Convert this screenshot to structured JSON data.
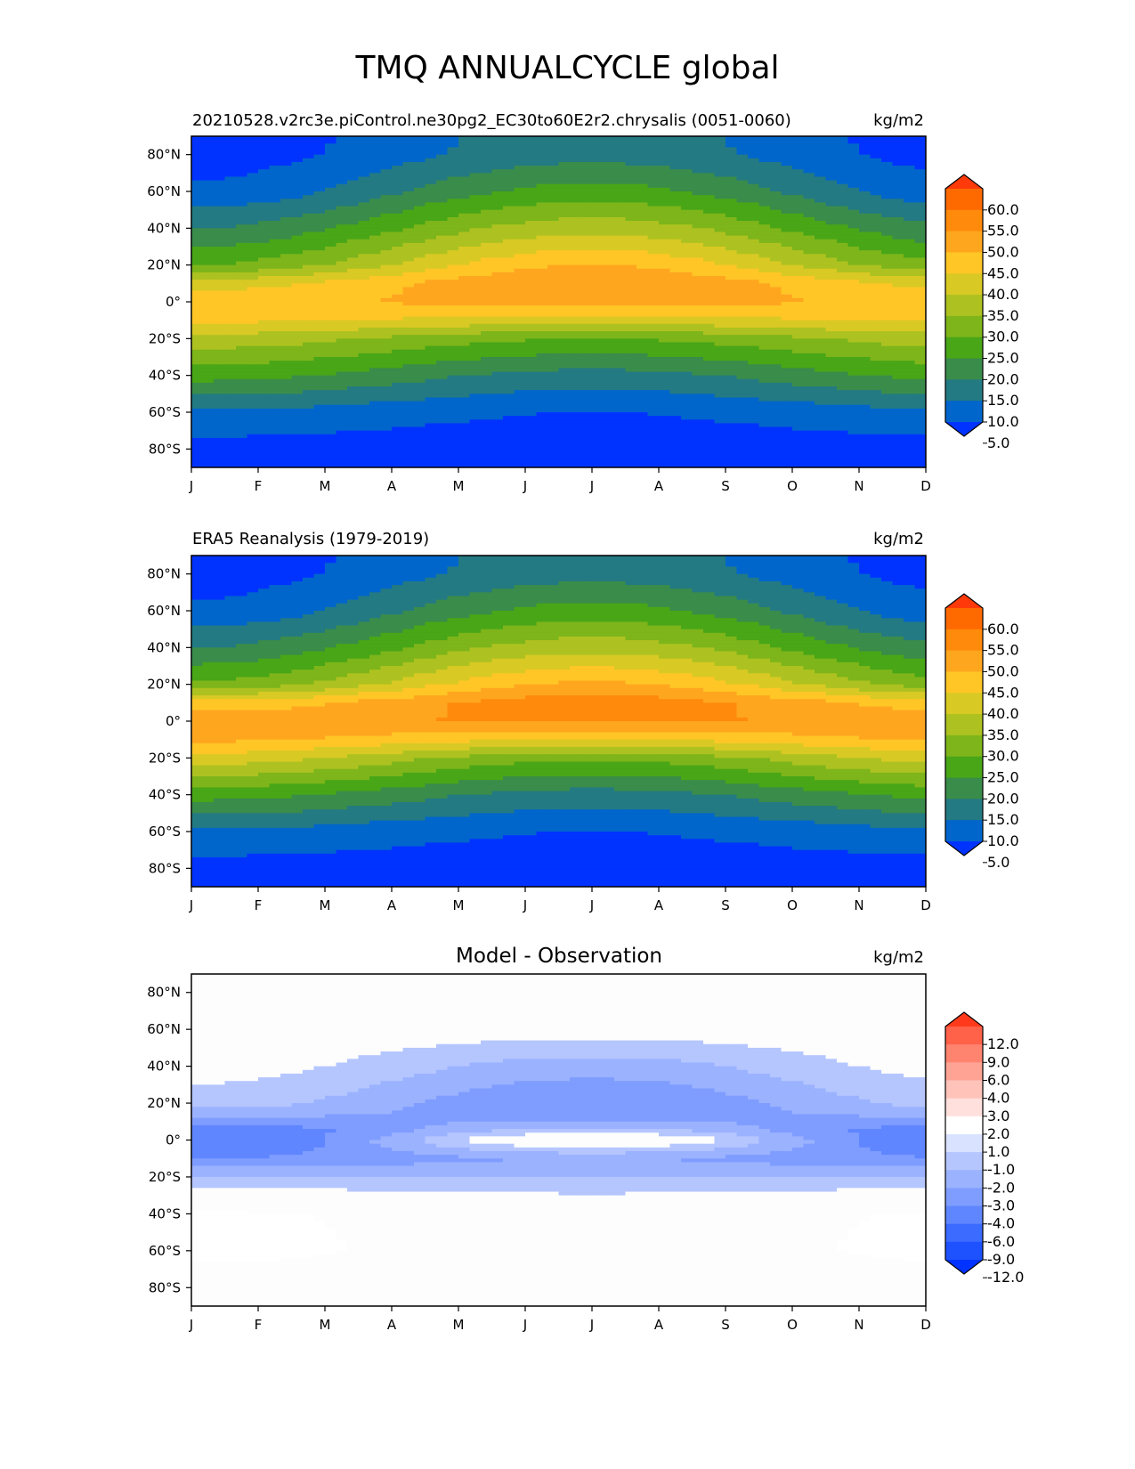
{
  "figure": {
    "title": "TMQ ANNUALCYCLE global"
  },
  "colors": {
    "field_levels": [
      "#0033ff",
      "#0066cc",
      "#237a83",
      "#3a8c4a",
      "#48a617",
      "#7db51a",
      "#adc220",
      "#d9c924",
      "#ffc626",
      "#ffa61f",
      "#ff8a0c",
      "#ff6a00",
      "#ff3a0a"
    ],
    "diff_levels": [
      "#0033ff",
      "#1f52ff",
      "#3b6bff",
      "#5f86ff",
      "#7f9dff",
      "#9bb2ff",
      "#b5c6ff",
      "#d9e2ff",
      "#ffffff",
      "#ffe0dc",
      "#ffc3ba",
      "#ffa494",
      "#ff8470",
      "#ff6149",
      "#ff3a1c"
    ],
    "zero_band": "#fdfdfd"
  },
  "chart_data": [
    {
      "id": "model",
      "type": "heatmap",
      "title": "20210528.v2rc3e.piControl.ne30pg2_EC30to60E2r2.chrysalis (0051-0060)",
      "units": "kg/m2",
      "x_ticks": [
        "J",
        "F",
        "M",
        "A",
        "M",
        "J",
        "J",
        "A",
        "S",
        "O",
        "N",
        "D"
      ],
      "y_ticks": [
        "80°N",
        "60°N",
        "40°N",
        "20°N",
        "0°",
        "20°S",
        "40°S",
        "60°S",
        "80°S"
      ],
      "ylim": [
        -90,
        90
      ],
      "colorbar": {
        "levels": [
          5,
          10,
          15,
          20,
          25,
          30,
          35,
          40,
          45,
          50,
          55,
          60
        ],
        "labels": [
          "60.0",
          "55.0",
          "50.0",
          "45.0",
          "40.0",
          "35.0",
          "30.0",
          "25.0",
          "20.0",
          "15.0",
          "10.0",
          "5.0"
        ],
        "extend": "both"
      },
      "field": {
        "lat": [
          90,
          80,
          60,
          40,
          20,
          10,
          0,
          -10,
          -20,
          -40,
          -60,
          -80,
          -90
        ],
        "jan": [
          2.0,
          2.5,
          6,
          15,
          25,
          38,
          43,
          41,
          33,
          22,
          9,
          3,
          2.5
        ],
        "jul": [
          12.5,
          13,
          22,
          33,
          45,
          50,
          48,
          38,
          25,
          13,
          5,
          2,
          1.5
        ],
        "note_month_shape": "cos"
      }
    },
    {
      "id": "obs",
      "type": "heatmap",
      "title": "ERA5 Reanalysis (1979-2019)",
      "units": "kg/m2",
      "x_ticks": [
        "J",
        "F",
        "M",
        "A",
        "M",
        "J",
        "J",
        "A",
        "S",
        "O",
        "N",
        "D"
      ],
      "y_ticks": [
        "80°N",
        "60°N",
        "40°N",
        "20°N",
        "0°",
        "20°S",
        "40°S",
        "60°S",
        "80°S"
      ],
      "ylim": [
        -90,
        90
      ],
      "colorbar": {
        "levels": [
          5,
          10,
          15,
          20,
          25,
          30,
          35,
          40,
          45,
          50,
          55,
          60
        ],
        "labels": [
          "60.0",
          "55.0",
          "50.0",
          "45.0",
          "40.0",
          "35.0",
          "30.0",
          "25.0",
          "20.0",
          "15.0",
          "10.0",
          "5.0"
        ],
        "extend": "both"
      },
      "field": {
        "lat": [
          90,
          80,
          60,
          40,
          20,
          10,
          0,
          -10,
          -20,
          -40,
          -60,
          -80,
          -90
        ],
        "jan": [
          2.0,
          2.5,
          6,
          15,
          26,
          42,
          48,
          46,
          38,
          22,
          9,
          3,
          2.5
        ],
        "jul": [
          12.5,
          13,
          22,
          33,
          46,
          53,
          51,
          40,
          26,
          13,
          5,
          2,
          1.5
        ]
      }
    },
    {
      "id": "diff",
      "type": "heatmap",
      "title": "Model - Observation",
      "units": "kg/m2",
      "x_ticks": [
        "J",
        "F",
        "M",
        "A",
        "M",
        "J",
        "J",
        "A",
        "S",
        "O",
        "N",
        "D"
      ],
      "y_ticks": [
        "80°N",
        "60°N",
        "40°N",
        "20°N",
        "0°",
        "20°S",
        "40°S",
        "60°S",
        "80°S"
      ],
      "ylim": [
        -90,
        90
      ],
      "colorbar": {
        "levels": [
          -12,
          -9,
          -6,
          -4,
          -3,
          -2,
          -1,
          1,
          2,
          3,
          4,
          6,
          9,
          12
        ],
        "labels": [
          "12.0",
          "9.0",
          "6.0",
          "4.0",
          "3.0",
          "2.0",
          "1.0",
          "-1.0",
          "-2.0",
          "-3.0",
          "-4.0",
          "-6.0",
          "-9.0",
          "-12.0"
        ],
        "extend": "both"
      },
      "field": {
        "lat": [
          90,
          80,
          60,
          40,
          20,
          10,
          5,
          0,
          -10,
          -20,
          -40,
          -60,
          -80,
          -90
        ],
        "jan": [
          0,
          0,
          0,
          -0.5,
          -1.5,
          -3.5,
          -5,
          -5.5,
          -4,
          -2,
          1.2,
          1.5,
          0,
          0
        ],
        "jul": [
          0,
          0,
          -0.5,
          -2.5,
          -4,
          -3,
          -1.5,
          0.5,
          -3,
          -2,
          0.2,
          0,
          0,
          0
        ]
      }
    }
  ]
}
